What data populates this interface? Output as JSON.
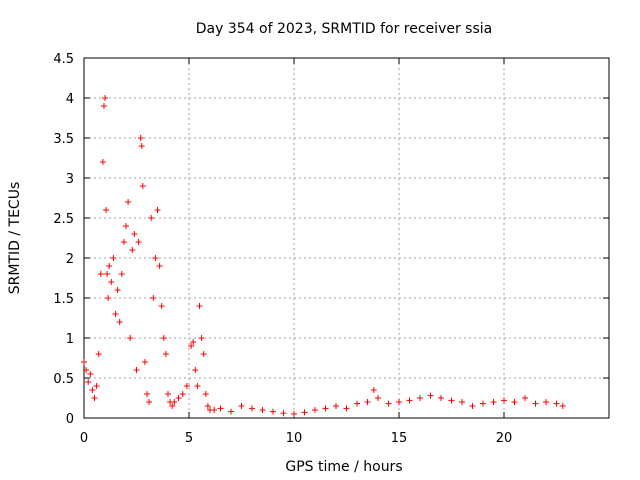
{
  "chart_data": {
    "type": "scatter",
    "title": "Day 354 of 2023, SRMTID for receiver ssia",
    "xlabel": "GPS time / hours",
    "ylabel": "SRMTID / TECUs",
    "xlim": [
      0,
      25
    ],
    "ylim": [
      0,
      4.5
    ],
    "x_ticks": [
      0,
      5,
      10,
      15,
      20
    ],
    "x_tick_labels": [
      "0",
      "5",
      "10",
      "15",
      "20"
    ],
    "y_ticks": [
      0,
      0.5,
      1,
      1.5,
      2,
      2.5,
      3,
      3.5,
      4,
      4.5
    ],
    "y_tick_labels": [
      "0",
      "0.5",
      "1",
      "1.5",
      "2",
      "2.5",
      "3",
      "3.5",
      "4",
      "4.5"
    ],
    "grid": true,
    "marker": "+",
    "color": "#ff0000",
    "series": [
      {
        "name": "SRMTID",
        "x": [
          0.0,
          0.1,
          0.2,
          0.3,
          0.4,
          0.5,
          0.6,
          0.7,
          0.8,
          0.9,
          0.95,
          1.0,
          1.05,
          1.1,
          1.15,
          1.2,
          1.3,
          1.4,
          1.5,
          1.6,
          1.7,
          1.8,
          1.9,
          2.0,
          2.1,
          2.2,
          2.3,
          2.4,
          2.5,
          2.6,
          2.7,
          2.75,
          2.8,
          2.9,
          3.0,
          3.1,
          3.2,
          3.3,
          3.4,
          3.5,
          3.6,
          3.7,
          3.8,
          3.9,
          4.0,
          4.1,
          4.2,
          4.3,
          4.5,
          4.7,
          4.9,
          5.1,
          5.2,
          5.3,
          5.4,
          5.5,
          5.6,
          5.7,
          5.8,
          5.9,
          6.0,
          6.2,
          6.5,
          7.0,
          7.5,
          8.0,
          8.5,
          9.0,
          9.5,
          10.0,
          10.5,
          11.0,
          11.5,
          12.0,
          12.5,
          13.0,
          13.5,
          13.8,
          14.0,
          14.5,
          15.0,
          15.5,
          16.0,
          16.5,
          17.0,
          17.5,
          18.0,
          18.5,
          19.0,
          19.5,
          20.0,
          20.5,
          21.0,
          21.5,
          22.0,
          22.5,
          22.8
        ],
        "y": [
          0.7,
          0.6,
          0.45,
          0.55,
          0.35,
          0.25,
          0.4,
          0.8,
          1.8,
          3.2,
          3.9,
          4.0,
          2.6,
          1.8,
          1.5,
          1.9,
          1.7,
          2.0,
          1.3,
          1.6,
          1.2,
          1.8,
          2.2,
          2.4,
          2.7,
          1.0,
          2.1,
          2.3,
          0.6,
          2.2,
          3.5,
          3.4,
          2.9,
          0.7,
          0.3,
          0.2,
          2.5,
          1.5,
          2.0,
          2.6,
          1.9,
          1.4,
          1.0,
          0.8,
          0.3,
          0.2,
          0.15,
          0.2,
          0.25,
          0.3,
          0.4,
          0.9,
          0.95,
          0.6,
          0.4,
          1.4,
          1.0,
          0.8,
          0.3,
          0.15,
          0.1,
          0.1,
          0.12,
          0.08,
          0.15,
          0.12,
          0.1,
          0.08,
          0.06,
          0.05,
          0.07,
          0.1,
          0.12,
          0.15,
          0.12,
          0.18,
          0.2,
          0.35,
          0.25,
          0.18,
          0.2,
          0.22,
          0.25,
          0.28,
          0.25,
          0.22,
          0.2,
          0.15,
          0.18,
          0.2,
          0.22,
          0.2,
          0.25,
          0.18,
          0.2,
          0.18,
          0.15
        ]
      }
    ]
  }
}
